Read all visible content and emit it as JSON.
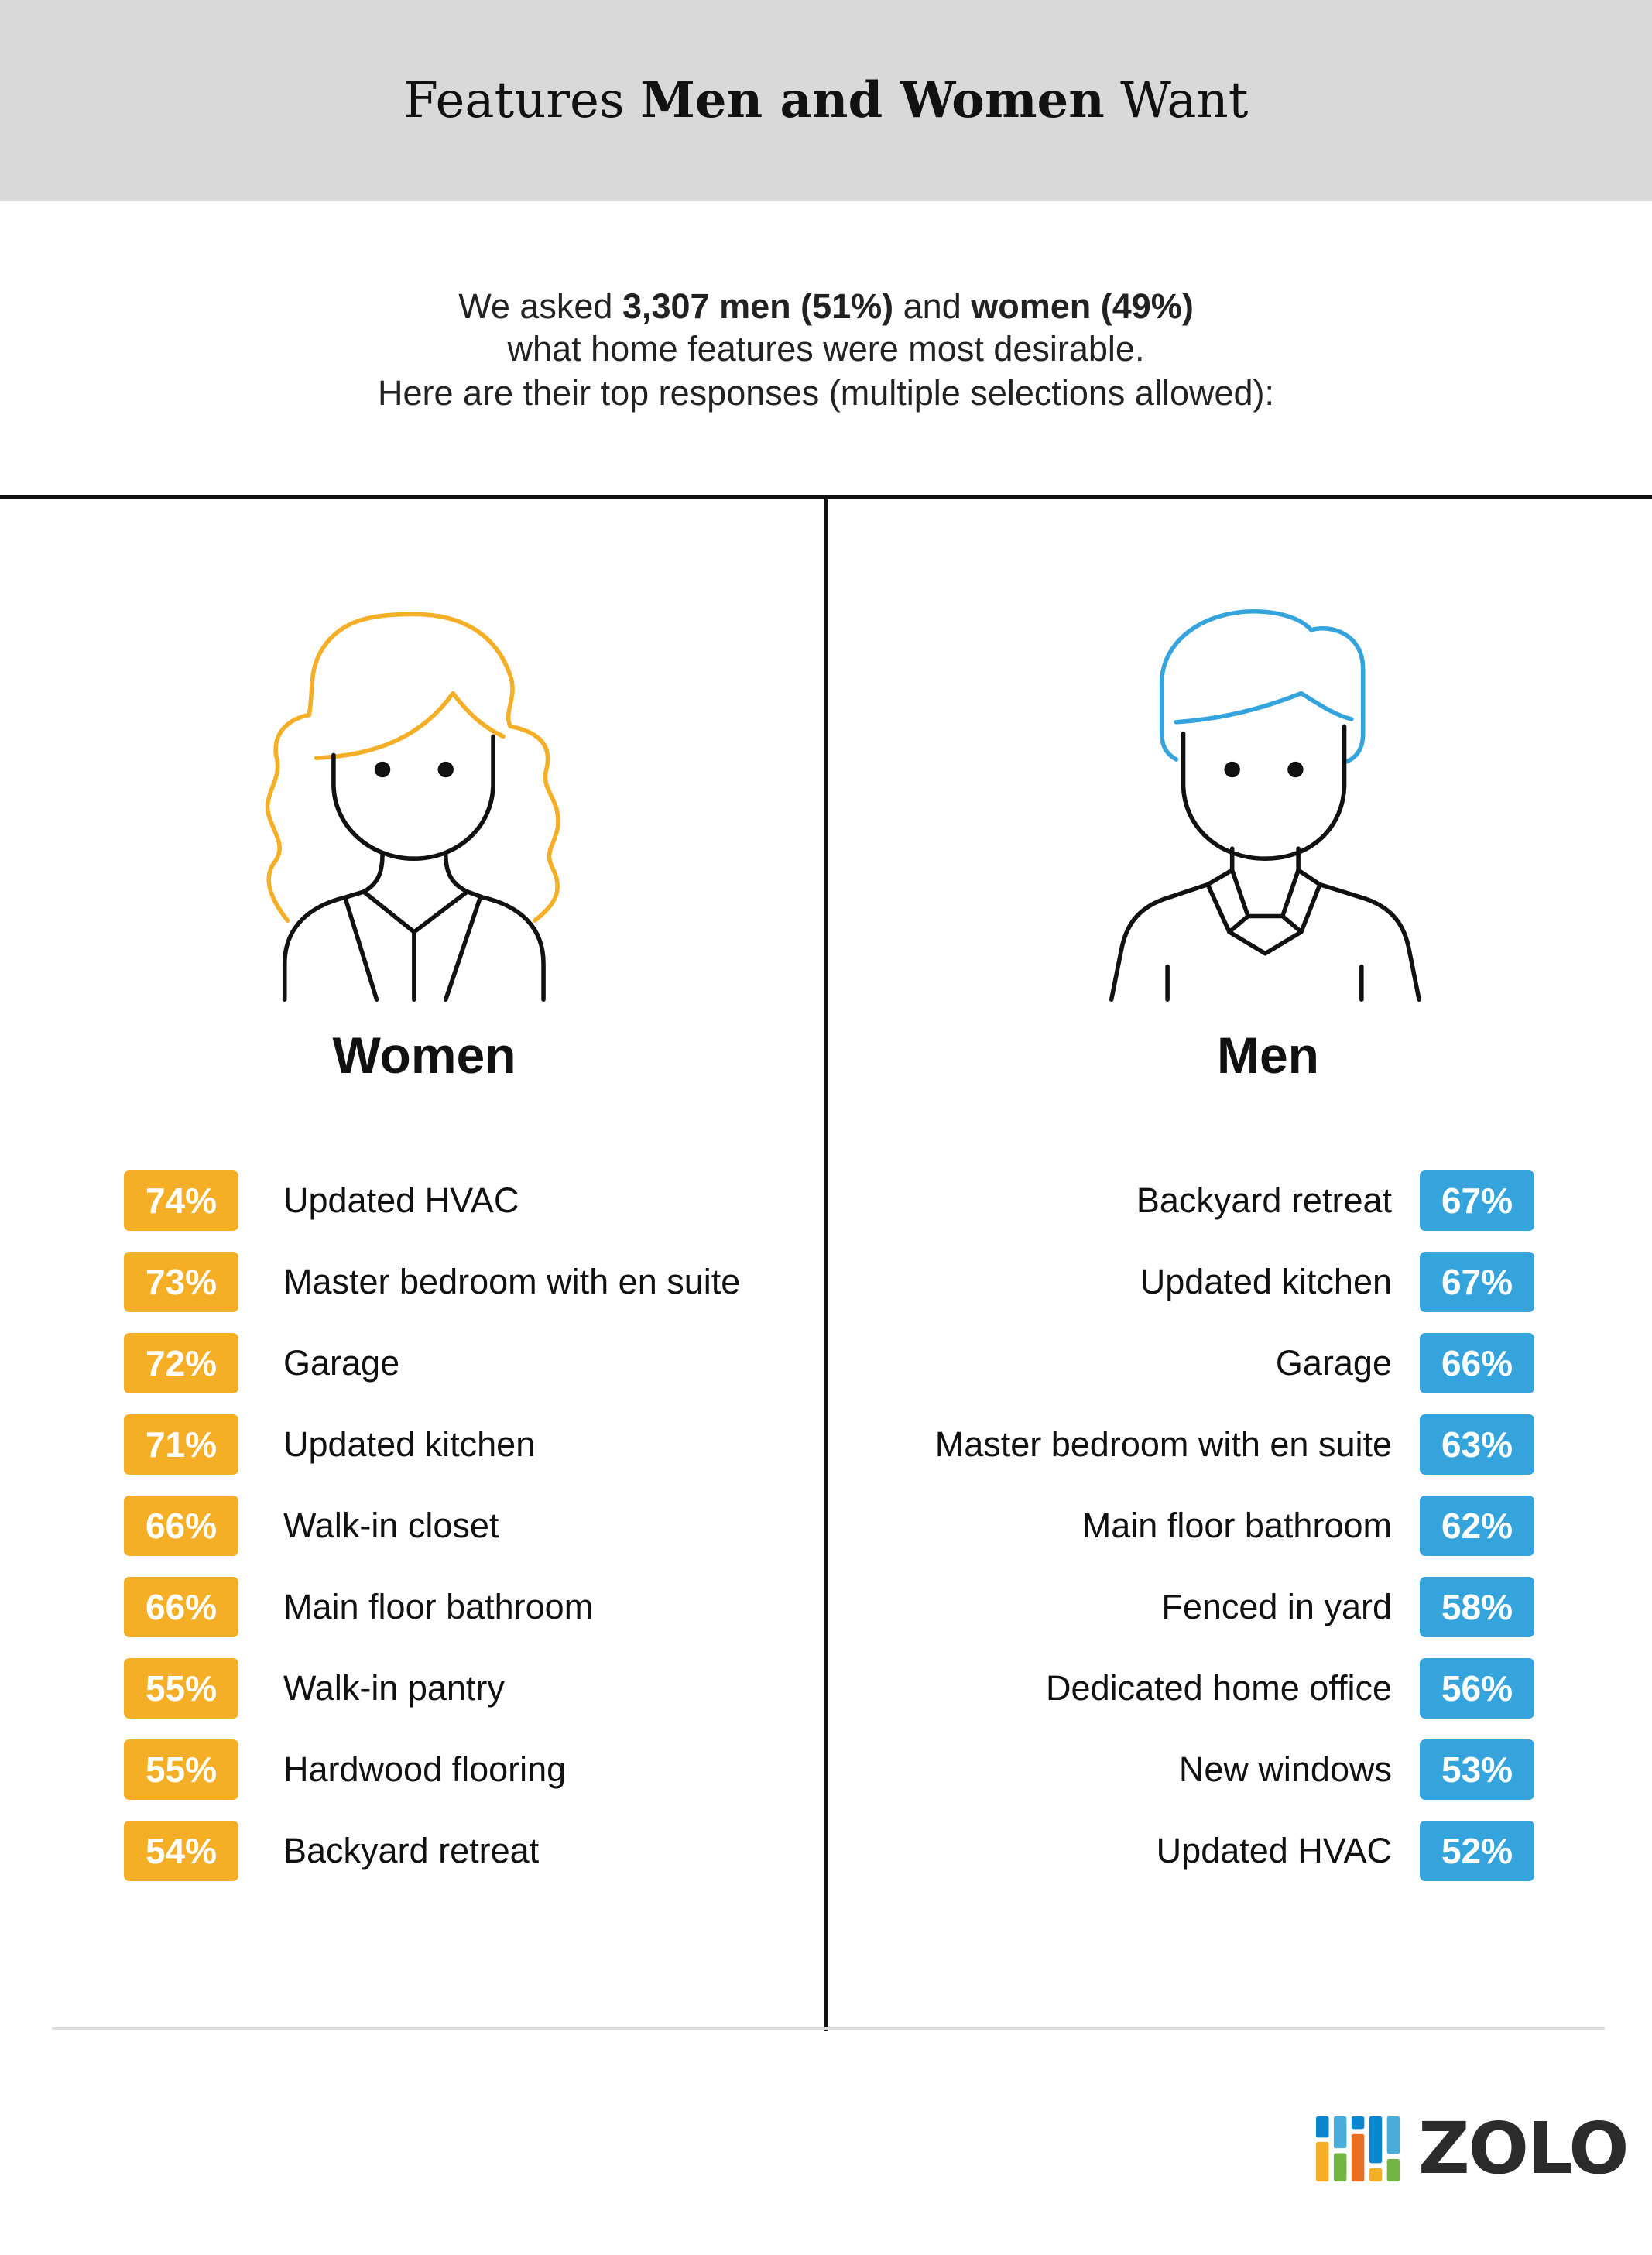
{
  "header": {
    "title_pre": "Features ",
    "title_bold": "Men and Women",
    "title_post": " Want"
  },
  "intro": {
    "line1_pre": "We asked ",
    "line1_bold1": "3,307 men (51%)",
    "line1_mid": " and ",
    "line1_bold2": "women (49%)",
    "line2": "what home features were most desirable.",
    "line3": "Here are their top responses (multiple selections allowed):"
  },
  "colors": {
    "women": "#f5af26",
    "men": "#35a4dd"
  },
  "women": {
    "label": "Women",
    "icon": "woman-avatar-icon",
    "items": [
      {
        "pct": "74%",
        "label": "Updated HVAC"
      },
      {
        "pct": "73%",
        "label": "Master bedroom with en suite"
      },
      {
        "pct": "72%",
        "label": "Garage"
      },
      {
        "pct": "71%",
        "label": "Updated kitchen"
      },
      {
        "pct": "66%",
        "label": "Walk-in closet"
      },
      {
        "pct": "66%",
        "label": "Main floor bathroom"
      },
      {
        "pct": "55%",
        "label": "Walk-in pantry"
      },
      {
        "pct": "55%",
        "label": "Hardwood flooring"
      },
      {
        "pct": "54%",
        "label": "Backyard retreat"
      }
    ]
  },
  "men": {
    "label": "Men",
    "icon": "man-avatar-icon",
    "items": [
      {
        "pct": "67%",
        "label": "Backyard retreat"
      },
      {
        "pct": "67%",
        "label": "Updated kitchen"
      },
      {
        "pct": "66%",
        "label": "Garage"
      },
      {
        "pct": "63%",
        "label": "Master bedroom with en suite"
      },
      {
        "pct": "62%",
        "label": "Main floor bathroom"
      },
      {
        "pct": "58%",
        "label": "Fenced in yard"
      },
      {
        "pct": "56%",
        "label": "Dedicated home office"
      },
      {
        "pct": "53%",
        "label": "New windows"
      },
      {
        "pct": "52%",
        "label": "Updated HVAC"
      }
    ]
  },
  "logo": {
    "text": "ZOLO"
  }
}
